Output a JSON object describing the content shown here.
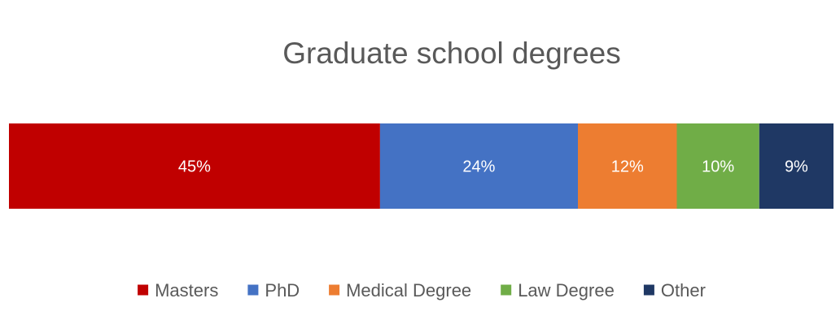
{
  "chart_data": {
    "type": "bar",
    "orientation": "horizontal-stacked-100",
    "title": "Graduate school degrees",
    "categories": [
      ""
    ],
    "series": [
      {
        "name": "Masters",
        "values": [
          45
        ],
        "label": "45%",
        "color": "#c00000"
      },
      {
        "name": "PhD",
        "values": [
          24
        ],
        "label": "24%",
        "color": "#4472c4"
      },
      {
        "name": "Medical Degree",
        "values": [
          12
        ],
        "label": "12%",
        "color": "#ed7d31"
      },
      {
        "name": "Law Degree",
        "values": [
          10
        ],
        "label": "10%",
        "color": "#70ad47"
      },
      {
        "name": "Other",
        "values": [
          9
        ],
        "label": "9%",
        "color": "#1f3864"
      }
    ],
    "xlim": [
      0,
      100
    ],
    "grid": false,
    "legend_position": "bottom",
    "colors": {
      "title": "#595959",
      "data_label": "#ffffff",
      "legend_text": "#595959"
    }
  }
}
